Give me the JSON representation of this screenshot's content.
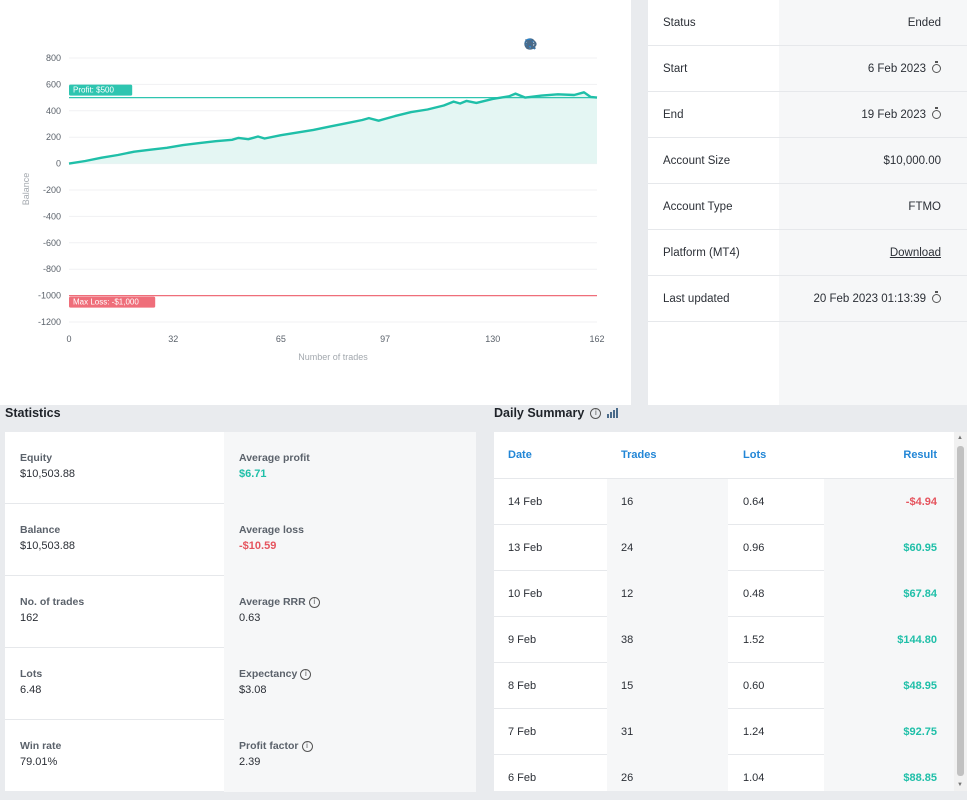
{
  "chart": {
    "toolbar": [
      "zoom-in-icon",
      "zoom-out-icon",
      "magnifier-icon",
      "home-icon",
      "hide-icon"
    ],
    "chart_data": {
      "type": "area",
      "xlabel": "Number of trades",
      "ylabel": "Balance",
      "x_ticks": [
        0,
        32,
        65,
        97,
        130,
        162
      ],
      "y_ticks": [
        800,
        600,
        400,
        200,
        0,
        -200,
        -400,
        -600,
        -800,
        -1000,
        -1200
      ],
      "xlim": [
        0,
        162
      ],
      "ylim": [
        -1200,
        800
      ],
      "series": [
        {
          "x": [
            0,
            5,
            10,
            15,
            20,
            25,
            30,
            35,
            40,
            45,
            50,
            52,
            55,
            58,
            60,
            65,
            70,
            75,
            80,
            85,
            90,
            92,
            95,
            100,
            105,
            110,
            115,
            118,
            120,
            122,
            125,
            130,
            135,
            137,
            140,
            145,
            150,
            155,
            158,
            160,
            162
          ],
          "y": [
            0,
            20,
            45,
            65,
            90,
            105,
            120,
            140,
            155,
            170,
            180,
            195,
            185,
            205,
            190,
            215,
            235,
            255,
            280,
            305,
            330,
            345,
            325,
            360,
            390,
            410,
            440,
            470,
            455,
            475,
            460,
            490,
            510,
            530,
            500,
            515,
            525,
            520,
            540,
            505,
            500
          ]
        }
      ],
      "annotations": [
        {
          "label": "Profit: $500",
          "y": 500,
          "color": "#2ec5b0"
        },
        {
          "label": "Max Loss: -$1,000",
          "y": -1000,
          "color": "#ef6e7a"
        }
      ],
      "colors": {
        "line": "#1fbfa8",
        "fill": "#e4f6f3"
      }
    }
  },
  "info": {
    "rows": [
      {
        "label": "Status",
        "value": "Ended"
      },
      {
        "label": "Start",
        "value": "6 Feb 2023"
      },
      {
        "label": "End",
        "value": "19 Feb 2023"
      },
      {
        "label": "Account Size",
        "value": "$10,000.00"
      },
      {
        "label": "Account Type",
        "value": "FTMO"
      },
      {
        "label": "Platform (MT4)",
        "value": "Download"
      },
      {
        "label": "Last updated",
        "value": "20 Feb 2023 01:13:39"
      }
    ]
  },
  "statistics": {
    "title": "Statistics",
    "rows": [
      {
        "left_label": "Equity",
        "left_value": "$10,503.88",
        "right_label": "Average profit",
        "right_value": "$6.71"
      },
      {
        "left_label": "Balance",
        "left_value": "$10,503.88",
        "right_label": "Average loss",
        "right_value": "-$10.59"
      },
      {
        "left_label": "No. of trades",
        "left_value": "162",
        "right_label": "Average RRR",
        "right_value": "0.63"
      },
      {
        "left_label": "Lots",
        "left_value": "6.48",
        "right_label": "Expectancy",
        "right_value": "$3.08"
      },
      {
        "left_label": "Win rate",
        "left_value": "79.01%",
        "right_label": "Profit factor",
        "right_value": "2.39"
      }
    ]
  },
  "daily": {
    "title": "Daily Summary",
    "headers": {
      "date": "Date",
      "trades": "Trades",
      "lots": "Lots",
      "result": "Result"
    },
    "rows": [
      {
        "date": "14 Feb",
        "trades": "16",
        "lots": "0.64",
        "result": "-$4.94"
      },
      {
        "date": "13 Feb",
        "trades": "24",
        "lots": "0.96",
        "result": "$60.95"
      },
      {
        "date": "10 Feb",
        "trades": "12",
        "lots": "0.48",
        "result": "$67.84"
      },
      {
        "date": "9 Feb",
        "trades": "38",
        "lots": "1.52",
        "result": "$144.80"
      },
      {
        "date": "8 Feb",
        "trades": "15",
        "lots": "0.60",
        "result": "$48.95"
      },
      {
        "date": "7 Feb",
        "trades": "31",
        "lots": "1.24",
        "result": "$92.75"
      },
      {
        "date": "6 Feb",
        "trades": "26",
        "lots": "1.04",
        "result": "$88.85"
      }
    ]
  }
}
